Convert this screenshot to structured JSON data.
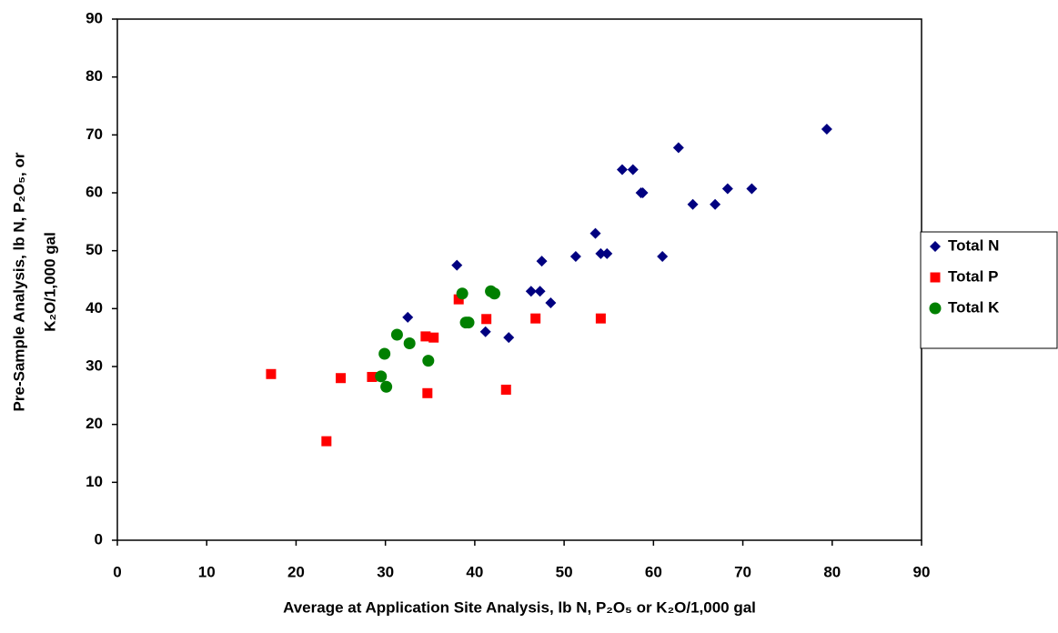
{
  "chart_data": {
    "type": "scatter",
    "xlabel": "Average at Application Site Analysis, lb N, P₂O₅ or K₂O/1,000 gal",
    "ylabel": [
      "Pre-Sample Analysis, lb N, P₂O₅, or",
      "K₂O/1,000 gal"
    ],
    "xlim": [
      0,
      90
    ],
    "ylim": [
      0,
      90
    ],
    "xticks": [
      0,
      10,
      20,
      30,
      40,
      50,
      60,
      70,
      80,
      90
    ],
    "yticks": [
      0,
      10,
      20,
      30,
      40,
      50,
      60,
      70,
      80,
      90
    ],
    "legend": "right",
    "series": [
      {
        "name": "Total N",
        "color": "#000080",
        "marker": "diamond",
        "x": [
          32.5,
          38,
          41.2,
          43.8,
          46.3,
          47.3,
          47.5,
          48.5,
          51.3,
          53.5,
          54.1,
          54.8,
          56.5,
          57.7,
          58.6,
          58.8,
          61,
          62.8,
          64.4,
          66.9,
          68.3,
          71,
          79.4
        ],
        "values": [
          38.5,
          47.5,
          36,
          35,
          43,
          43,
          48.2,
          41,
          49,
          53,
          49.5,
          49.5,
          64,
          64,
          60,
          60,
          49,
          67.8,
          58,
          58,
          60.7,
          60.7,
          71
        ]
      },
      {
        "name": "Total P",
        "color": "#ff0000",
        "marker": "square",
        "x": [
          17.2,
          23.4,
          25,
          28.5,
          34.5,
          34.7,
          35.4,
          38.2,
          41.3,
          43.5,
          46.8,
          54.1
        ],
        "values": [
          28.7,
          17.1,
          28,
          28.2,
          35.2,
          25.4,
          35,
          41.6,
          38.2,
          26,
          38.3,
          38.3
        ]
      },
      {
        "name": "Total K",
        "color": "#008000",
        "marker": "circle",
        "x": [
          29.5,
          29.9,
          30.1,
          31.3,
          32.7,
          34.8,
          38.6,
          39,
          39.3,
          41.8,
          42.2
        ],
        "values": [
          28.3,
          32.2,
          26.5,
          35.5,
          34,
          31,
          42.6,
          37.6,
          37.6,
          43,
          42.6
        ]
      }
    ]
  }
}
